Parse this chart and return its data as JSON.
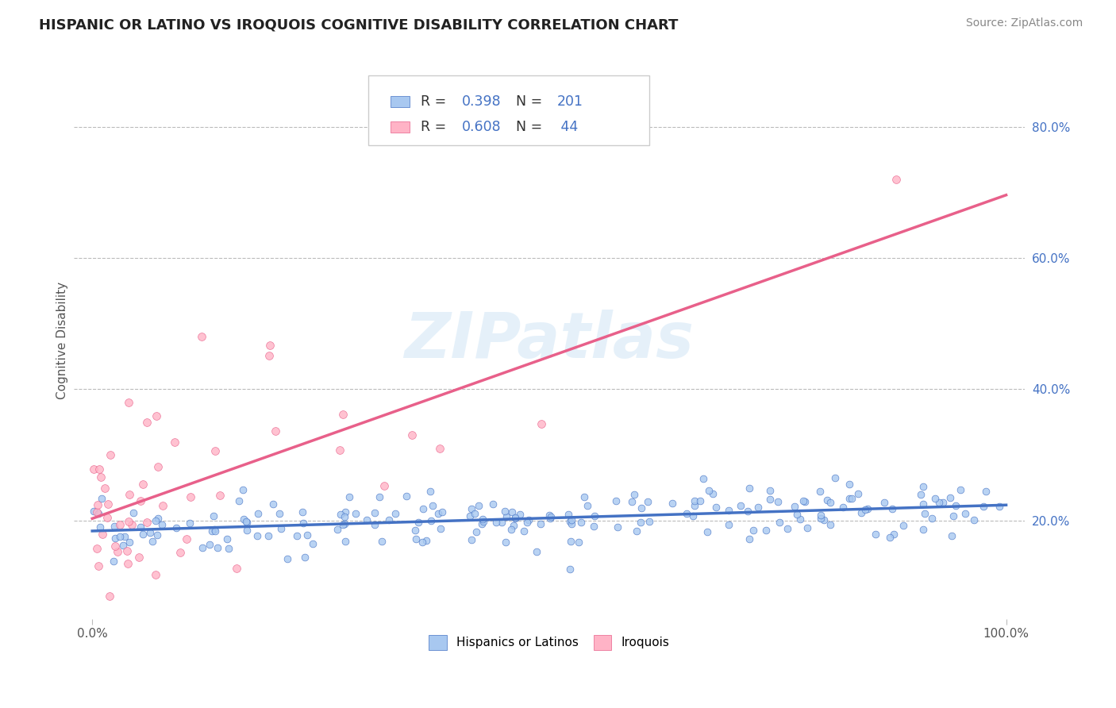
{
  "title": "HISPANIC OR LATINO VS IROQUOIS COGNITIVE DISABILITY CORRELATION CHART",
  "source": "Source: ZipAtlas.com",
  "ylabel": "Cognitive Disability",
  "series1": {
    "name": "Hispanics or Latinos",
    "R": 0.398,
    "N": 201,
    "color_scatter": "#a8c8f0",
    "color_edge": "#4472c4",
    "color_line": "#4472c4"
  },
  "series2": {
    "name": "Iroquois",
    "R": 0.608,
    "N": 44,
    "color_scatter": "#ffb3c6",
    "color_edge": "#e8608a",
    "color_line": "#e8608a"
  },
  "xmin": 0.0,
  "xmax": 1.0,
  "ymin": 0.05,
  "ymax": 0.9,
  "watermark": "ZIPatlas",
  "background_color": "#ffffff",
  "grid_color": "#bbbbbb",
  "title_color": "#222222",
  "title_fontsize": 13,
  "axis_label_fontsize": 11,
  "source_fontsize": 10,
  "right_ytick_color": "#4472c4",
  "yticks": [
    0.2,
    0.4,
    0.6,
    0.8
  ],
  "ytick_labels": [
    "20.0%",
    "40.0%",
    "60.0%",
    "80.0%"
  ]
}
